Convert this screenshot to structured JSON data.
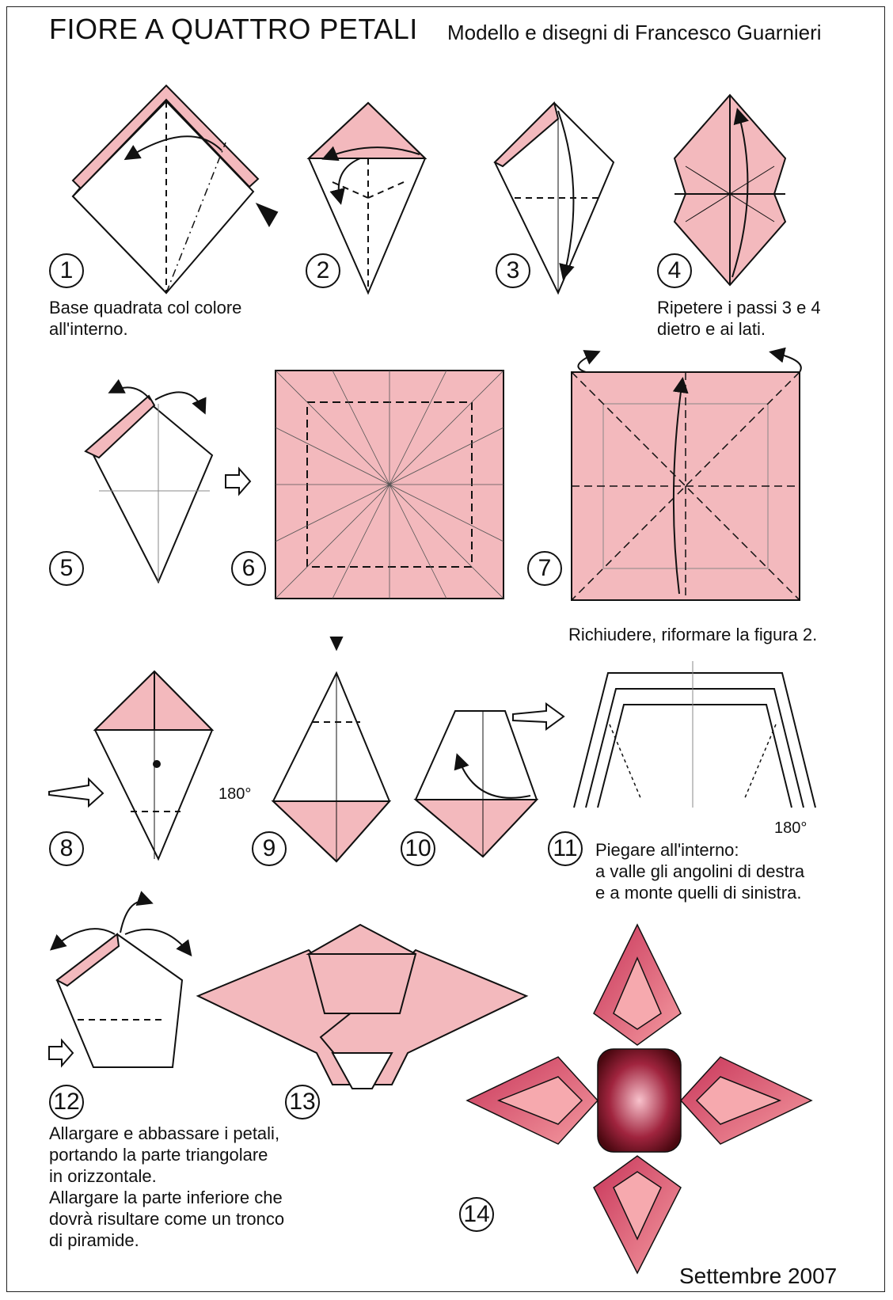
{
  "header": {
    "title": "FIORE  A QUATTRO PETALI",
    "subtitle": "Modello e disegni di Francesco Guarnieri"
  },
  "steps": [
    {
      "number": "1",
      "caption": "Base quadrata col colore\nall'interno."
    },
    {
      "number": "2",
      "caption": ""
    },
    {
      "number": "3",
      "caption": ""
    },
    {
      "number": "4",
      "caption": "Ripetere i passi 3 e 4\ndietro e ai lati."
    },
    {
      "number": "5",
      "caption": ""
    },
    {
      "number": "6",
      "caption": ""
    },
    {
      "number": "7",
      "caption": "Richiudere, riformare la figura 2."
    },
    {
      "number": "8",
      "caption": ""
    },
    {
      "number": "9",
      "caption": ""
    },
    {
      "number": "10",
      "caption": ""
    },
    {
      "number": "11",
      "caption": "Piegare all'interno:\na valle gli angolini di destra\ne a monte quelli di sinistra."
    },
    {
      "number": "12",
      "caption": "Allargare e abbassare i petali,\nportando la parte triangolare\nin orizzontale.\nAllargare la parte inferiore che\ndovrà risultare come un tronco\ndi piramide."
    },
    {
      "number": "13",
      "caption": ""
    },
    {
      "number": "14",
      "caption": ""
    }
  ],
  "rotation_label": "180°",
  "footer": {
    "date": "Settembre 2007"
  },
  "colors": {
    "paper_pink": "#f3b9bd",
    "petal_dark": "#c8365a",
    "petal_light": "#f2a0a8",
    "center_dark": "#5a0a14",
    "line": "#111111"
  }
}
